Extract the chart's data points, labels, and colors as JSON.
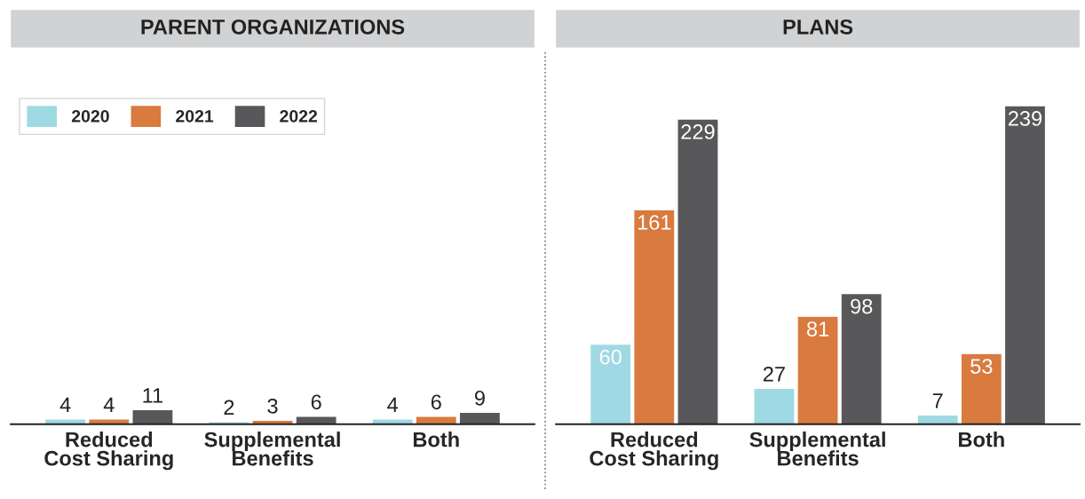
{
  "chart_data": [
    {
      "type": "bar",
      "title": "PARENT ORGANIZATIONS",
      "categories": [
        "Reduced\nCost Sharing",
        "Supplemental\nBenefits",
        "Both"
      ],
      "data_labels": true,
      "legend": "top left",
      "series": [
        {
          "name": "2020",
          "color": "#9fd9e3",
          "values": [
            4,
            2,
            4
          ]
        },
        {
          "name": "2021",
          "color": "#d97a3e",
          "values": [
            4,
            3,
            6
          ]
        },
        {
          "name": "2022",
          "color": "#58585a",
          "values": [
            11,
            6,
            9
          ]
        }
      ]
    },
    {
      "type": "bar",
      "title": "PLANS",
      "categories": [
        "Reduced\nCost Sharing",
        "Supplemental\nBenefits",
        "Both"
      ],
      "data_labels": true,
      "legend": false,
      "series": [
        {
          "name": "2020",
          "color": "#9fd9e3",
          "values": [
            60,
            27,
            7
          ]
        },
        {
          "name": "2021",
          "color": "#d97a3e",
          "values": [
            161,
            81,
            53
          ]
        },
        {
          "name": "2022",
          "color": "#58585a",
          "values": [
            229,
            98,
            239
          ]
        }
      ]
    }
  ]
}
